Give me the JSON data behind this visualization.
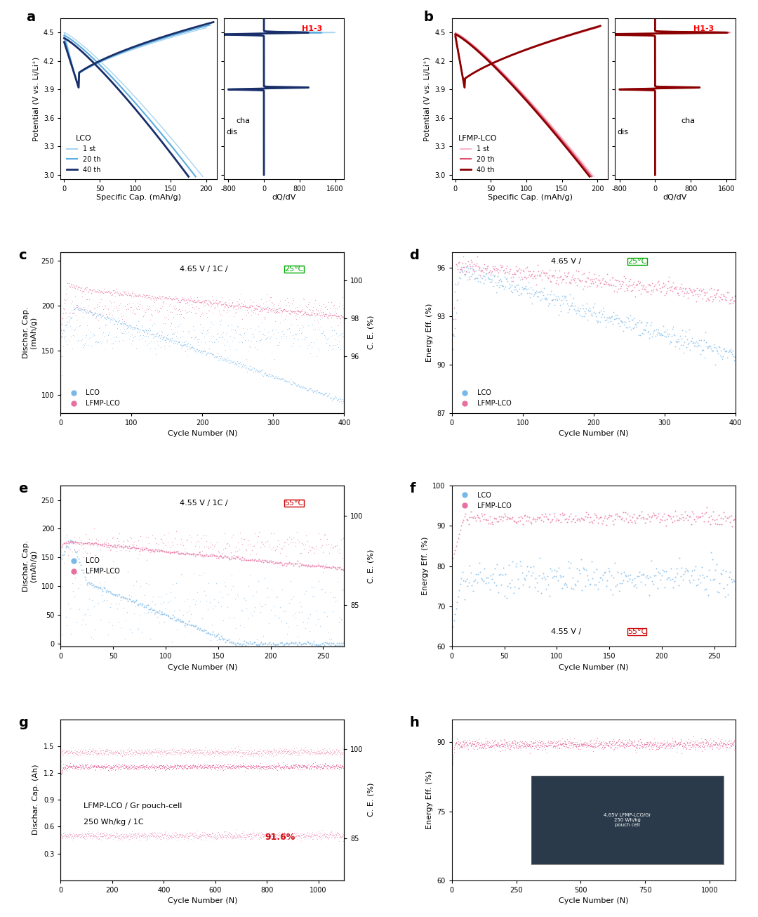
{
  "panel_labels": [
    "a",
    "b",
    "c",
    "d",
    "e",
    "f",
    "g",
    "h"
  ],
  "colors": {
    "lco_1st": "#aad4f0",
    "lco_20th": "#5aade0",
    "lco_40th": "#1a2f6a",
    "lfmp_1st": "#f5b8c8",
    "lfmp_20th": "#e05070",
    "lfmp_40th": "#8b0000",
    "lco_scatter": "#7ab8e8",
    "lfmp_scatter": "#e870a0",
    "lco_ce": "#7ab8e8",
    "lfmp_ce": "#e870a0",
    "h13_red": "#cc0000",
    "temp25_color": "#00aa00",
    "temp55_color": "#cc0000",
    "annotation_red": "#cc0000"
  },
  "subplot_a": {
    "ylabel": "Potential (V vs. Li/Li⁺)",
    "xlabel1": "Specific Cap. (mAh/g)",
    "xlabel2": "dQ/dV",
    "yticks": [
      3.0,
      3.3,
      3.6,
      3.9,
      4.2,
      4.5
    ],
    "xticks1": [
      0,
      50,
      100,
      150,
      200
    ],
    "xticks2": [
      -800,
      0,
      800,
      1600
    ],
    "label_lco": "LCO",
    "legend1": "1 st",
    "legend20": "20 th",
    "legend40": "40 th"
  },
  "subplot_b": {
    "ylabel": "Potential (V vs. Li/Li⁺)",
    "xlabel1": "Specific Cap. (mAh/g)",
    "xlabel2": "dQ/dV",
    "yticks": [
      3.0,
      3.3,
      3.6,
      3.9,
      4.2,
      4.5
    ],
    "xticks1": [
      0,
      50,
      100,
      150,
      200
    ],
    "xticks2": [
      -800,
      0,
      800,
      1600
    ],
    "label_lfmp": "LFMP-LCO",
    "legend1": "1 st",
    "legend20": "20 th",
    "legend40": "40 th"
  },
  "subplot_c": {
    "ylabel": "Dischar. Cap.\n(mAh/g)",
    "ylabel_right": "C. E. (%)",
    "xlabel": "Cycle Number (N)",
    "annotation": "4.65 V / 1C / 25°C",
    "ylim": [
      80,
      260
    ],
    "xlim": [
      0,
      400
    ],
    "yticks_left": [
      100,
      150,
      200,
      250
    ],
    "yticks_right": [
      96,
      98,
      100
    ],
    "xticks": [
      0,
      100,
      200,
      300,
      400
    ]
  },
  "subplot_d": {
    "ylabel": "Energy Eff. (%)",
    "xlabel": "Cycle Number (N)",
    "annotation": "4.65 V / 25°C",
    "ylim": [
      87,
      97
    ],
    "xlim": [
      0,
      400
    ],
    "yticks": [
      87,
      90,
      93,
      96
    ],
    "xticks": [
      0,
      100,
      200,
      300,
      400
    ]
  },
  "subplot_e": {
    "ylabel": "Dischar. Cap.\n(mAh/g)",
    "ylabel_right": "C. E. (%)",
    "xlabel": "Cycle Number (N)",
    "annotation": "4.55 V / 1C / 55°C",
    "ylim": [
      0,
      280
    ],
    "xlim": [
      0,
      270
    ],
    "yticks_left": [
      0,
      50,
      100,
      150,
      200,
      250
    ],
    "yticks_right": [
      85,
      100
    ],
    "xticks": [
      0,
      50,
      100,
      150,
      200,
      250
    ]
  },
  "subplot_f": {
    "ylabel": "Energy Eff. (%)",
    "xlabel": "Cycle Number (N)",
    "annotation": "4.55 V / 55°C",
    "ylim": [
      60,
      100
    ],
    "xlim": [
      0,
      270
    ],
    "yticks": [
      60,
      70,
      80,
      90,
      100
    ],
    "xticks": [
      0,
      50,
      100,
      150,
      200,
      250
    ]
  },
  "subplot_g": {
    "ylabel": "Dischar. Cap. (Ah)",
    "ylabel_right": "C. E. (%)",
    "xlabel": "Cycle Number (N)",
    "annotation1": "LFMP-LCO / Gr pouch-cell",
    "annotation2": "250 Wh/kg / 1C",
    "annotation3": "91.6%",
    "ylim": [
      0,
      1.8
    ],
    "xlim": [
      0,
      1100
    ],
    "yticks_left": [
      0.3,
      0.6,
      0.9,
      1.2,
      1.5
    ],
    "yticks_right": [
      85,
      100
    ],
    "xticks": [
      0,
      200,
      400,
      600,
      800,
      1000
    ]
  },
  "subplot_h": {
    "ylabel": "Energy Eff. (%)",
    "xlabel": "Cycle Number (N)",
    "ylim": [
      60,
      95
    ],
    "xlim": [
      0,
      1100
    ],
    "yticks": [
      60,
      75,
      90
    ],
    "xticks": [
      0,
      250,
      500,
      750,
      1000
    ]
  }
}
